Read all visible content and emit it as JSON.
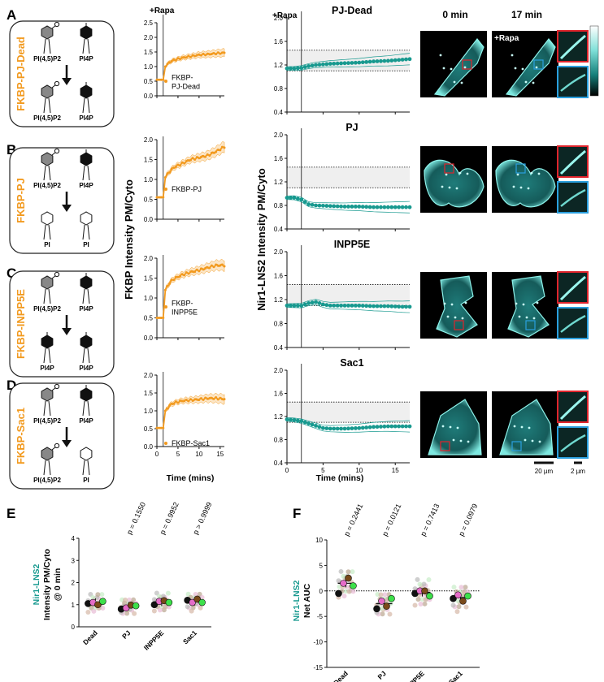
{
  "colors": {
    "orange": "#f29a1f",
    "teal": "#17998f",
    "shade": "#efefef",
    "red": "#e0242c",
    "blue": "#2a9fde",
    "black": "#111111"
  },
  "panels": [
    {
      "letter": "A",
      "construct": "FKBP-PJ-Dead",
      "top_left": "PI(4,5)P2",
      "top_right": "PI4P",
      "bottom_left": "PI(4,5)P2",
      "bottom_right": "PI4P",
      "after_l": "pip2",
      "after_r": "pi4p",
      "legend": "FKBP-\nPJ-Dead",
      "enzyme": "PJ-Dead"
    },
    {
      "letter": "B",
      "construct": "FKBP-PJ",
      "top_left": "PI(4,5)P2",
      "top_right": "PI4P",
      "bottom_left": "PI",
      "bottom_right": "PI",
      "after_l": "pi",
      "after_r": "pi",
      "legend": "FKBP-PJ",
      "enzyme": "PJ"
    },
    {
      "letter": "C",
      "construct": "FKBP-INPP5E",
      "top_left": "PI(4,5)P2",
      "top_right": "PI4P",
      "bottom_left": "PI4P",
      "bottom_right": "PI4P",
      "after_l": "pi4p",
      "after_r": "pi4p",
      "legend": "FKBP-\nINPP5E",
      "enzyme": "INPP5E"
    },
    {
      "letter": "D",
      "construct": "FKBP-Sac1",
      "top_left": "PI(4,5)P2",
      "top_right": "PI4P",
      "bottom_left": "PI(4,5)P2",
      "bottom_right": "PI",
      "after_l": "pip2",
      "after_r": "pi",
      "legend": "FKBP-Sac1",
      "enzyme": "Sac1"
    }
  ],
  "labels": {
    "rapa": "+Rapa",
    "fkbp_ylabel": "FKBP Intensity PM/Cyto",
    "nir_ylabel": "Nir1-LNS2 Intensity PM/Cyto",
    "time_label": "Time (mins)",
    "col_0min": "0 min",
    "col_17min": "17 min",
    "rapa_img": "+Rapa",
    "scale_20": "20 µm",
    "scale_2": "2 µm"
  },
  "chart_data": [
    {
      "type": "line",
      "panel": "A-left",
      "ylabel": "FKBP Intensity PM/Cyto",
      "xlabel": "Time (mins)",
      "xlim": [
        0,
        16
      ],
      "ylim": [
        0,
        2.5
      ],
      "yticks": [
        "0.0",
        "0.5",
        "1.0",
        "1.5",
        "2.0",
        "2.5"
      ],
      "xticks": [
        "0",
        "5",
        "10",
        "15"
      ],
      "series": [
        {
          "name": "FKBP-PJ-Dead",
          "x": [
            0,
            1.5,
            2,
            3,
            4,
            6,
            8,
            10,
            12,
            14,
            16
          ],
          "y": [
            0.55,
            0.55,
            1.0,
            1.15,
            1.22,
            1.3,
            1.35,
            1.4,
            1.42,
            1.45,
            1.47
          ]
        }
      ]
    },
    {
      "type": "line",
      "panel": "B-left",
      "ylabel": "FKBP Intensity PM/Cyto",
      "xlabel": "Time (mins)",
      "xlim": [
        0,
        16
      ],
      "ylim": [
        0,
        2.0
      ],
      "yticks": [
        "0.0",
        "0.5",
        "1.0",
        "1.5",
        "2.0"
      ],
      "xticks": [
        "0",
        "5",
        "10",
        "15"
      ],
      "series": [
        {
          "name": "FKBP-PJ",
          "x": [
            0,
            1.5,
            2,
            3,
            4,
            6,
            8,
            10,
            12,
            14,
            16
          ],
          "y": [
            0.55,
            0.55,
            1.05,
            1.2,
            1.3,
            1.4,
            1.5,
            1.55,
            1.6,
            1.7,
            1.82
          ]
        }
      ]
    },
    {
      "type": "line",
      "panel": "C-left",
      "ylabel": "FKBP Intensity PM/Cyto",
      "xlabel": "Time (mins)",
      "xlim": [
        0,
        16
      ],
      "ylim": [
        0,
        2.0
      ],
      "yticks": [
        "0.0",
        "0.5",
        "1.0",
        "1.5",
        "2.0"
      ],
      "xticks": [
        "0",
        "5",
        "10",
        "15"
      ],
      "series": [
        {
          "name": "FKBP-INPP5E",
          "x": [
            0,
            1.5,
            2,
            3,
            4,
            6,
            8,
            10,
            12,
            14,
            16
          ],
          "y": [
            0.5,
            0.5,
            1.2,
            1.38,
            1.48,
            1.58,
            1.65,
            1.7,
            1.76,
            1.82,
            1.82
          ]
        }
      ]
    },
    {
      "type": "line",
      "panel": "D-left",
      "ylabel": "FKBP Intensity PM/Cyto",
      "xlabel": "Time (mins)",
      "xlim": [
        0,
        16
      ],
      "ylim": [
        0,
        2.0
      ],
      "yticks": [
        "0.0",
        "0.5",
        "1.0",
        "1.5",
        "2.0"
      ],
      "xticks": [
        "0",
        "5",
        "10",
        "15"
      ],
      "series": [
        {
          "name": "FKBP-Sac1",
          "x": [
            0,
            1.5,
            2,
            3,
            4,
            6,
            8,
            10,
            12,
            14,
            16
          ],
          "y": [
            0.52,
            0.52,
            1.0,
            1.15,
            1.22,
            1.28,
            1.3,
            1.32,
            1.35,
            1.35,
            1.33
          ]
        }
      ]
    },
    {
      "type": "line",
      "panel": "A-right",
      "title": "PJ-Dead",
      "ylabel": "Nir1-LNS2 Intensity PM/Cyto",
      "xlabel": "Time (mins)",
      "xlim": [
        0,
        17
      ],
      "ylim": [
        0.4,
        2.0
      ],
      "yticks": [
        "0.4",
        "0.8",
        "1.2",
        "1.6",
        "2.0"
      ],
      "xticks": [
        "0",
        "5",
        "10",
        "15"
      ],
      "band": [
        1.1,
        1.45
      ],
      "series": [
        {
          "name": "Nir1-LNS2",
          "x": [
            0,
            1,
            2,
            3,
            4,
            6,
            8,
            10,
            12,
            14,
            16,
            17
          ],
          "y": [
            1.14,
            1.14,
            1.15,
            1.18,
            1.2,
            1.22,
            1.23,
            1.24,
            1.26,
            1.27,
            1.29,
            1.3
          ]
        }
      ]
    },
    {
      "type": "line",
      "panel": "B-right",
      "title": "PJ",
      "ylabel": "Nir1-LNS2 Intensity PM/Cyto",
      "xlabel": "Time (mins)",
      "xlim": [
        0,
        17
      ],
      "ylim": [
        0.4,
        2.0
      ],
      "yticks": [
        "0.4",
        "0.8",
        "1.2",
        "1.6",
        "2.0"
      ],
      "xticks": [
        "0",
        "5",
        "10",
        "15"
      ],
      "band": [
        1.1,
        1.45
      ],
      "series": [
        {
          "name": "Nir1-LNS2",
          "x": [
            0,
            1,
            2,
            3,
            4,
            6,
            8,
            10,
            12,
            14,
            16,
            17
          ],
          "y": [
            0.93,
            0.93,
            0.9,
            0.82,
            0.8,
            0.79,
            0.78,
            0.78,
            0.77,
            0.77,
            0.77,
            0.77
          ]
        }
      ]
    },
    {
      "type": "line",
      "panel": "C-right",
      "title": "INPP5E",
      "ylabel": "Nir1-LNS2 Intensity PM/Cyto",
      "xlabel": "Time (mins)",
      "xlim": [
        0,
        17
      ],
      "ylim": [
        0.4,
        2.0
      ],
      "yticks": [
        "0.4",
        "0.8",
        "1.2",
        "1.6",
        "2.0"
      ],
      "xticks": [
        "0",
        "5",
        "10",
        "15"
      ],
      "band": [
        1.1,
        1.45
      ],
      "series": [
        {
          "name": "Nir1-LNS2",
          "x": [
            0,
            1,
            2,
            3,
            4,
            5,
            6,
            8,
            10,
            12,
            14,
            16,
            17
          ],
          "y": [
            1.1,
            1.1,
            1.1,
            1.14,
            1.16,
            1.12,
            1.1,
            1.1,
            1.1,
            1.09,
            1.09,
            1.08,
            1.08
          ]
        }
      ]
    },
    {
      "type": "line",
      "panel": "D-right",
      "title": "Sac1",
      "ylabel": "Nir1-LNS2 Intensity PM/Cyto",
      "xlabel": "Time (mins)",
      "xlim": [
        0,
        17
      ],
      "ylim": [
        0.4,
        2.0
      ],
      "yticks": [
        "0.4",
        "0.8",
        "1.2",
        "1.6",
        "2.0"
      ],
      "xticks": [
        "0",
        "5",
        "10",
        "15"
      ],
      "band": [
        1.1,
        1.45
      ],
      "series": [
        {
          "name": "Nir1-LNS2",
          "x": [
            0,
            1,
            2,
            3,
            4,
            5,
            6,
            8,
            10,
            12,
            14,
            16,
            17
          ],
          "y": [
            1.15,
            1.14,
            1.12,
            1.08,
            1.04,
            1.0,
            0.99,
            0.99,
            1.0,
            1.02,
            1.03,
            1.03,
            1.03
          ]
        }
      ]
    },
    {
      "type": "scatter",
      "panel": "E",
      "ylabel_colored": "Nir1-LNS2",
      "ylabel": "Intensity PM/Cyto",
      "ylabel2": "@ 0 min",
      "ylim": [
        0,
        4
      ],
      "yticks": [
        "0",
        "1",
        "2",
        "3",
        "4"
      ],
      "categories": [
        "Dead",
        "PJ",
        "INPP5E",
        "Sac1"
      ],
      "means": [
        1.1,
        0.93,
        1.12,
        1.15
      ],
      "pvalues": [
        "p = 0.1550",
        "p = 0.9952",
        "p > 0.9999"
      ],
      "replicates": [
        [
          1.05,
          1.1,
          1.0,
          1.15
        ],
        [
          0.8,
          0.85,
          0.98,
          0.95
        ],
        [
          1.0,
          1.15,
          1.18,
          1.1
        ],
        [
          1.2,
          1.1,
          1.25,
          1.1
        ]
      ]
    },
    {
      "type": "scatter",
      "panel": "F",
      "ylabel_colored": "Nir1-LNS2",
      "ylabel": "Net AUC",
      "ylim": [
        -15,
        10
      ],
      "yticks": [
        "-15",
        "-10",
        "-5",
        "0",
        "5",
        "10"
      ],
      "categories": [
        "Dead",
        "PJ",
        "INPP5E",
        "Sac1"
      ],
      "means": [
        1.5,
        -2.5,
        -0.3,
        -1.3
      ],
      "pvalues": [
        "p = 0.2441",
        "p = 0.0121",
        "p = 0.7413",
        "p = 0.0979"
      ],
      "replicates": [
        [
          -0.5,
          1.5,
          2.5,
          1.0
        ],
        [
          -3.5,
          -2.0,
          -3.0,
          -1.5
        ],
        [
          -0.5,
          0.0,
          0.0,
          -1.0
        ],
        [
          -1.5,
          -0.8,
          -2.0,
          -1.0
        ]
      ]
    }
  ],
  "bottom": {
    "letter_e": "E",
    "letter_f": "F"
  }
}
